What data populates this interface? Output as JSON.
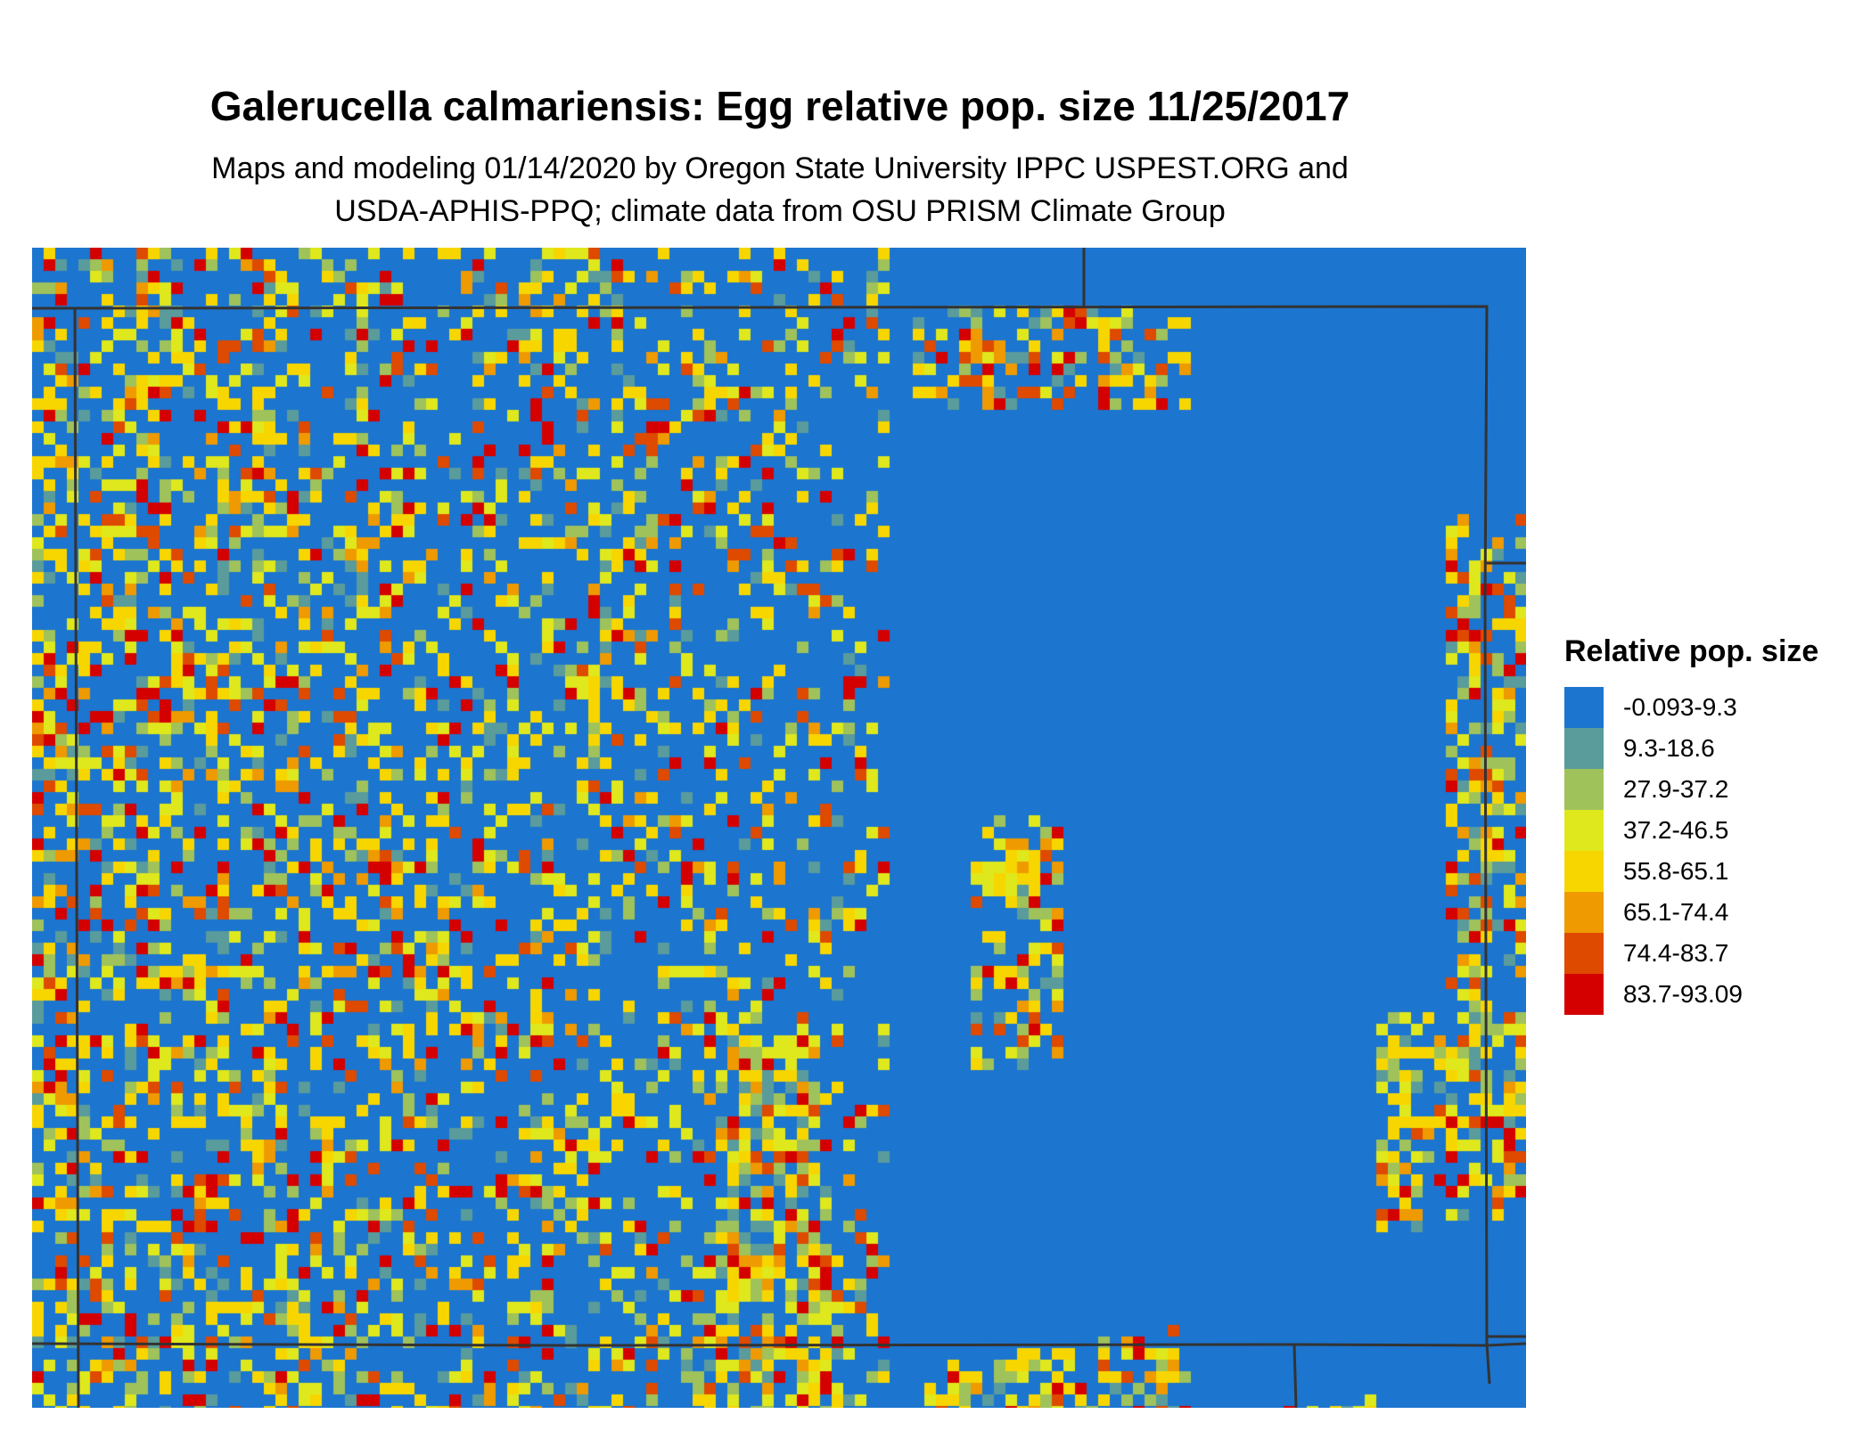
{
  "title": "Galerucella calmariensis: Egg relative pop. size 11/25/2017",
  "subtitle_line1": "Maps and modeling 01/14/2020 by Oregon State University IPPC USPEST.ORG and",
  "subtitle_line2": "USDA-APHIS-PPQ; climate data from OSU PRISM Climate Group",
  "legend": {
    "title": "Relative pop. size",
    "items": [
      {
        "label": "-0.093-9.3",
        "color": "#1c75cf"
      },
      {
        "label": "9.3-18.6",
        "color": "#5a9b9c"
      },
      {
        "label": "27.9-37.2",
        "color": "#9fc25b"
      },
      {
        "label": "37.2-46.5",
        "color": "#dfe81c"
      },
      {
        "label": "55.8-65.1",
        "color": "#f7d600"
      },
      {
        "label": "65.1-74.4",
        "color": "#ee9a00"
      },
      {
        "label": "74.4-83.7",
        "color": "#dd4a00"
      },
      {
        "label": "83.7-93.09",
        "color": "#d40000"
      }
    ]
  }
}
